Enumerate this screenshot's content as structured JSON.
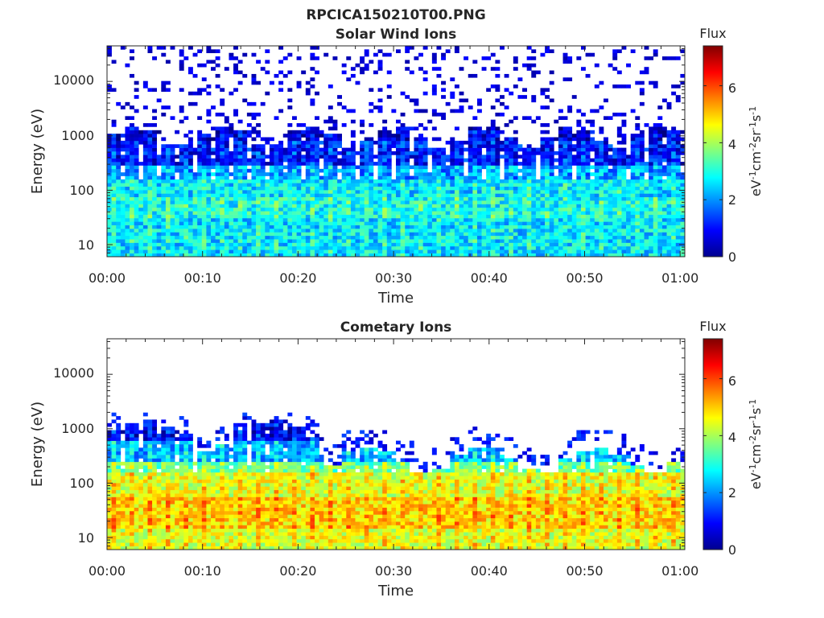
{
  "figure_title": "RPCICA150210T00.PNG",
  "chart_data": [
    {
      "type": "heatmap",
      "title": "Solar Wind Ions",
      "xlabel": "Time",
      "ylabel": "Energy (eV)",
      "x_ticks": [
        "00:00",
        "00:10",
        "00:20",
        "00:30",
        "00:40",
        "00:50",
        "01:00"
      ],
      "xlim_minutes": [
        0,
        60.5
      ],
      "y_ticks": [
        "10",
        "100",
        "1000",
        "10000"
      ],
      "y_scale": "log",
      "ylim": [
        6,
        45000
      ],
      "colorbar": {
        "label_top": "Flux",
        "label_side": "eV-1cm-2sr-1s-1",
        "ticks": [
          "0",
          "2",
          "4",
          "6"
        ],
        "range": [
          0,
          7.4
        ],
        "colormap": "jet"
      },
      "profile": {
        "description_levels": "approx log10 flux by energy band",
        "bands": [
          {
            "e_min": 6,
            "e_max": 30,
            "flux": 2.6
          },
          {
            "e_min": 30,
            "e_max": 70,
            "flux": 2.9
          },
          {
            "e_min": 70,
            "e_max": 150,
            "flux": 2.6
          },
          {
            "e_min": 150,
            "e_max": 300,
            "flux": 2.0
          },
          {
            "e_min": 300,
            "e_max": 800,
            "flux": 1.0
          },
          {
            "e_min": 800,
            "e_max": 45000,
            "flux": 0.6
          }
        ]
      }
    },
    {
      "type": "heatmap",
      "title": "Cometary Ions",
      "xlabel": "Time",
      "ylabel": "Energy (eV)",
      "x_ticks": [
        "00:00",
        "00:10",
        "00:20",
        "00:30",
        "00:40",
        "00:50",
        "01:00"
      ],
      "xlim_minutes": [
        0,
        60.5
      ],
      "y_ticks": [
        "10",
        "100",
        "1000",
        "10000"
      ],
      "y_scale": "log",
      "ylim": [
        6,
        45000
      ],
      "colorbar": {
        "label_top": "Flux",
        "label_side": "eV-1cm-2sr-1s-1",
        "ticks": [
          "0",
          "2",
          "4",
          "6"
        ],
        "range": [
          0,
          7.4
        ],
        "colormap": "jet"
      },
      "profile": {
        "description_levels": "approx log10 flux by energy band",
        "bands": [
          {
            "e_min": 6,
            "e_max": 15,
            "flux": 4.6
          },
          {
            "e_min": 15,
            "e_max": 60,
            "flux": 5.1
          },
          {
            "e_min": 60,
            "e_max": 150,
            "flux": 4.6
          },
          {
            "e_min": 150,
            "e_max": 260,
            "flux": 3.8
          },
          {
            "e_min": 260,
            "e_max": 600,
            "flux": 2.4
          },
          {
            "e_min": 600,
            "e_max": 2000,
            "flux": 1.0
          }
        ]
      }
    }
  ]
}
